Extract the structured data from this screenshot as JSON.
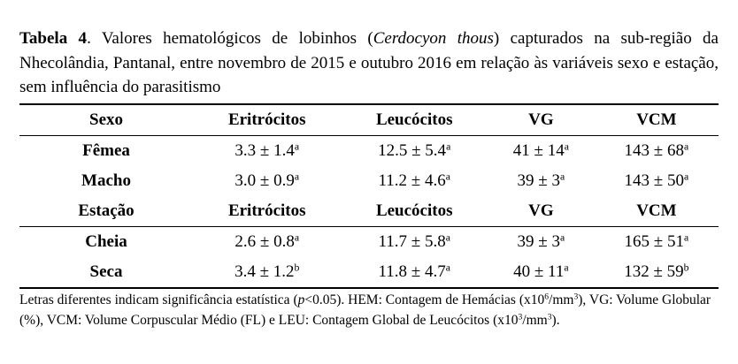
{
  "caption": [
    {
      "text": "Tabela 4",
      "style": "b"
    },
    {
      "text": ". Valores hematológicos de lobinhos (",
      "style": "n"
    },
    {
      "text": "Cerdocyon thous",
      "style": "i"
    },
    {
      "text": ") capturados na sub-região da Nhecolândia, Pantanal, entre novembro de 2015 e outubro 2016 em relação às variáveis sexo e estação, sem influência do parasitismo",
      "style": "n"
    }
  ],
  "table": {
    "sections": [
      {
        "header": [
          "Sexo",
          "Eritrócitos",
          "Leucócitos",
          "VG",
          "VCM"
        ],
        "rows": [
          {
            "label": "Fêmea",
            "cells": [
              {
                "text": "3.3 ± 1.4",
                "sup": "a"
              },
              {
                "text": "12.5 ± 5.4",
                "sup": "a"
              },
              {
                "text": "41 ± 14",
                "sup": "a"
              },
              {
                "text": "143 ± 68",
                "sup": "a"
              }
            ]
          },
          {
            "label": "Macho",
            "cells": [
              {
                "text": "3.0 ± 0.9",
                "sup": "a"
              },
              {
                "text": "11.2 ± 4.6",
                "sup": "a"
              },
              {
                "text": "39 ± 3",
                "sup": "a"
              },
              {
                "text": "143 ± 50",
                "sup": "a"
              }
            ]
          }
        ]
      },
      {
        "header": [
          "Estação",
          "Eritrócitos",
          "Leucócitos",
          "VG",
          "VCM"
        ],
        "rows": [
          {
            "label": "Cheia",
            "cells": [
              {
                "text": "2.6 ± 0.8",
                "sup": "a"
              },
              {
                "text": "11.7 ± 5.8",
                "sup": "a"
              },
              {
                "text": "39 ± 3",
                "sup": "a"
              },
              {
                "text": "165 ± 51",
                "sup": "a"
              }
            ]
          },
          {
            "label": "Seca",
            "cells": [
              {
                "text": "3.4 ± 1.2",
                "sup": "b"
              },
              {
                "text": "11.8 ± 4.7",
                "sup": "a"
              },
              {
                "text": "40 ± 11",
                "sup": "a"
              },
              {
                "text": "132 ± 59",
                "sup": "b"
              }
            ]
          }
        ]
      }
    ]
  },
  "footnote": [
    {
      "text": "Letras diferentes indicam significância estatística (",
      "style": "n"
    },
    {
      "text": "p",
      "style": "i"
    },
    {
      "text": "<0.05). HEM: Contagem de Hemácias (x10",
      "style": "n"
    },
    {
      "text": "6",
      "style": "sup"
    },
    {
      "text": "/mm",
      "style": "n"
    },
    {
      "text": "3",
      "style": "sup"
    },
    {
      "text": "), VG: Volume Globular (%), VCM: Volume Corpuscular Médio (FL) e LEU: Contagem Global de Leucócitos (x10",
      "style": "n"
    },
    {
      "text": "3",
      "style": "sup"
    },
    {
      "text": "/mm",
      "style": "n"
    },
    {
      "text": "3",
      "style": "sup"
    },
    {
      "text": ").",
      "style": "n"
    }
  ]
}
